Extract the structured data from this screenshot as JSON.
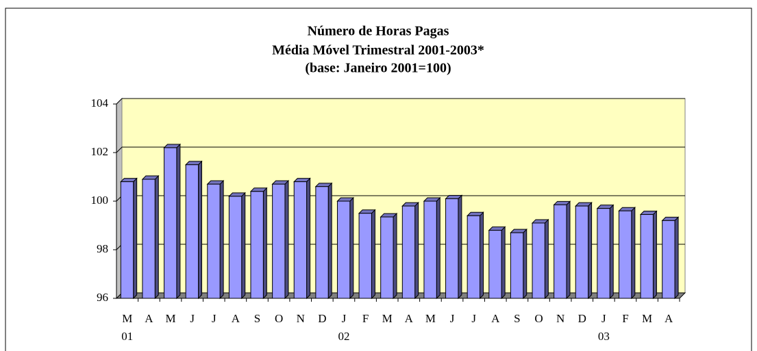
{
  "chart_data": {
    "type": "bar",
    "title": [
      "Número de Horas Pagas",
      "Média Móvel Trimestral 2001-2003*",
      "(base: Janeiro 2001=100)"
    ],
    "categories": [
      "M",
      "A",
      "M",
      "J",
      "J",
      "A",
      "S",
      "O",
      "N",
      "D",
      "J",
      "F",
      "M",
      "A",
      "M",
      "J",
      "J",
      "A",
      "S",
      "O",
      "N",
      "D",
      "J",
      "F",
      "M",
      "A"
    ],
    "category_years": [
      "01",
      null,
      null,
      null,
      null,
      null,
      null,
      null,
      null,
      null,
      "02",
      null,
      null,
      null,
      null,
      null,
      null,
      null,
      null,
      null,
      null,
      null,
      "03",
      null,
      null,
      null
    ],
    "values": [
      100.8,
      100.9,
      102.2,
      101.5,
      100.7,
      100.2,
      100.4,
      100.7,
      100.8,
      100.6,
      100.0,
      99.5,
      99.35,
      99.8,
      100.0,
      100.1,
      99.4,
      98.8,
      98.7,
      99.1,
      99.85,
      99.8,
      99.7,
      99.6,
      99.45,
      99.2
    ],
    "color": "#9999ff",
    "ylim": [
      96,
      104
    ],
    "yticks": [
      96,
      98,
      100,
      102,
      104
    ],
    "grid": true
  }
}
